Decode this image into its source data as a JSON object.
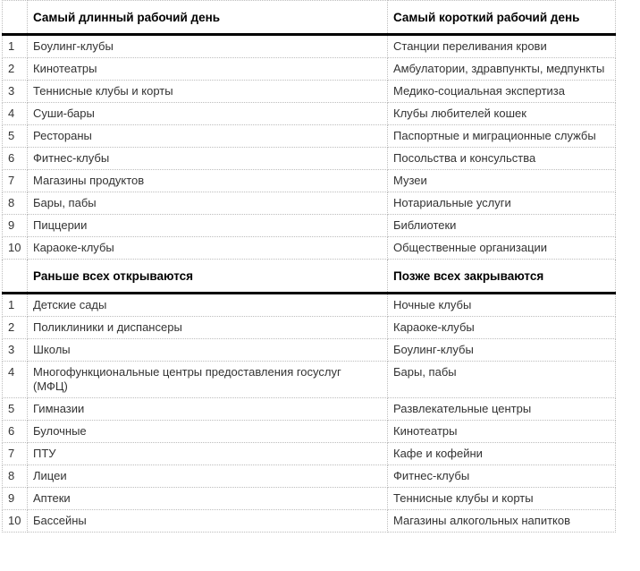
{
  "page": {
    "background": "#ffffff",
    "text_color": "#333333",
    "header_text_color": "#000000",
    "border_color": "#bdbdbd",
    "header_rule_color": "#000000"
  },
  "table": {
    "sections": [
      {
        "left_header": "Самый длинный рабочий день",
        "right_header": "Самый короткий рабочий день",
        "rows": [
          {
            "rank": "1",
            "left": "Боулинг-клубы",
            "right": "Станции переливания крови"
          },
          {
            "rank": "2",
            "left": "Кинотеатры",
            "right": "Амбулатории, здравпункты, медпункты"
          },
          {
            "rank": "3",
            "left": "Теннисные клубы и корты",
            "right": "Медико-социальная экспертиза"
          },
          {
            "rank": "4",
            "left": "Суши-бары",
            "right": "Клубы любителей кошек"
          },
          {
            "rank": "5",
            "left": "Рестораны",
            "right": "Паспортные и миграционные службы"
          },
          {
            "rank": "6",
            "left": "Фитнес-клубы",
            "right": "Посольства и консульства"
          },
          {
            "rank": "7",
            "left": "Магазины продуктов",
            "right": "Музеи"
          },
          {
            "rank": "8",
            "left": "Бары, пабы",
            "right": "Нотариальные услуги"
          },
          {
            "rank": "9",
            "left": "Пиццерии",
            "right": "Библиотеки"
          },
          {
            "rank": "10",
            "left": "Караоке-клубы",
            "right": "Общественные организации"
          }
        ]
      },
      {
        "left_header": "Раньше всех открываются",
        "right_header": "Позже всех закрываются",
        "rows": [
          {
            "rank": "1",
            "left": "Детские сады",
            "right": "Ночные клубы"
          },
          {
            "rank": "2",
            "left": "Поликлиники и диспансеры",
            "right": "Караоке-клубы"
          },
          {
            "rank": "3",
            "left": "Школы",
            "right": "Боулинг-клубы"
          },
          {
            "rank": "4",
            "left": "Многофункциональные центры предоставления госуслуг (МФЦ)",
            "right": "Бары, пабы"
          },
          {
            "rank": "5",
            "left": "Гимназии",
            "right": "Развлекательные центры"
          },
          {
            "rank": "6",
            "left": "Булочные",
            "right": "Кинотеатры"
          },
          {
            "rank": "7",
            "left": "ПТУ",
            "right": "Кафе и кофейни"
          },
          {
            "rank": "8",
            "left": "Лицеи",
            "right": "Фитнес-клубы"
          },
          {
            "rank": "9",
            "left": "Аптеки",
            "right": "Теннисные клубы и корты"
          },
          {
            "rank": "10",
            "left": "Бассейны",
            "right": "Магазины алкогольных напитков"
          }
        ]
      }
    ]
  }
}
